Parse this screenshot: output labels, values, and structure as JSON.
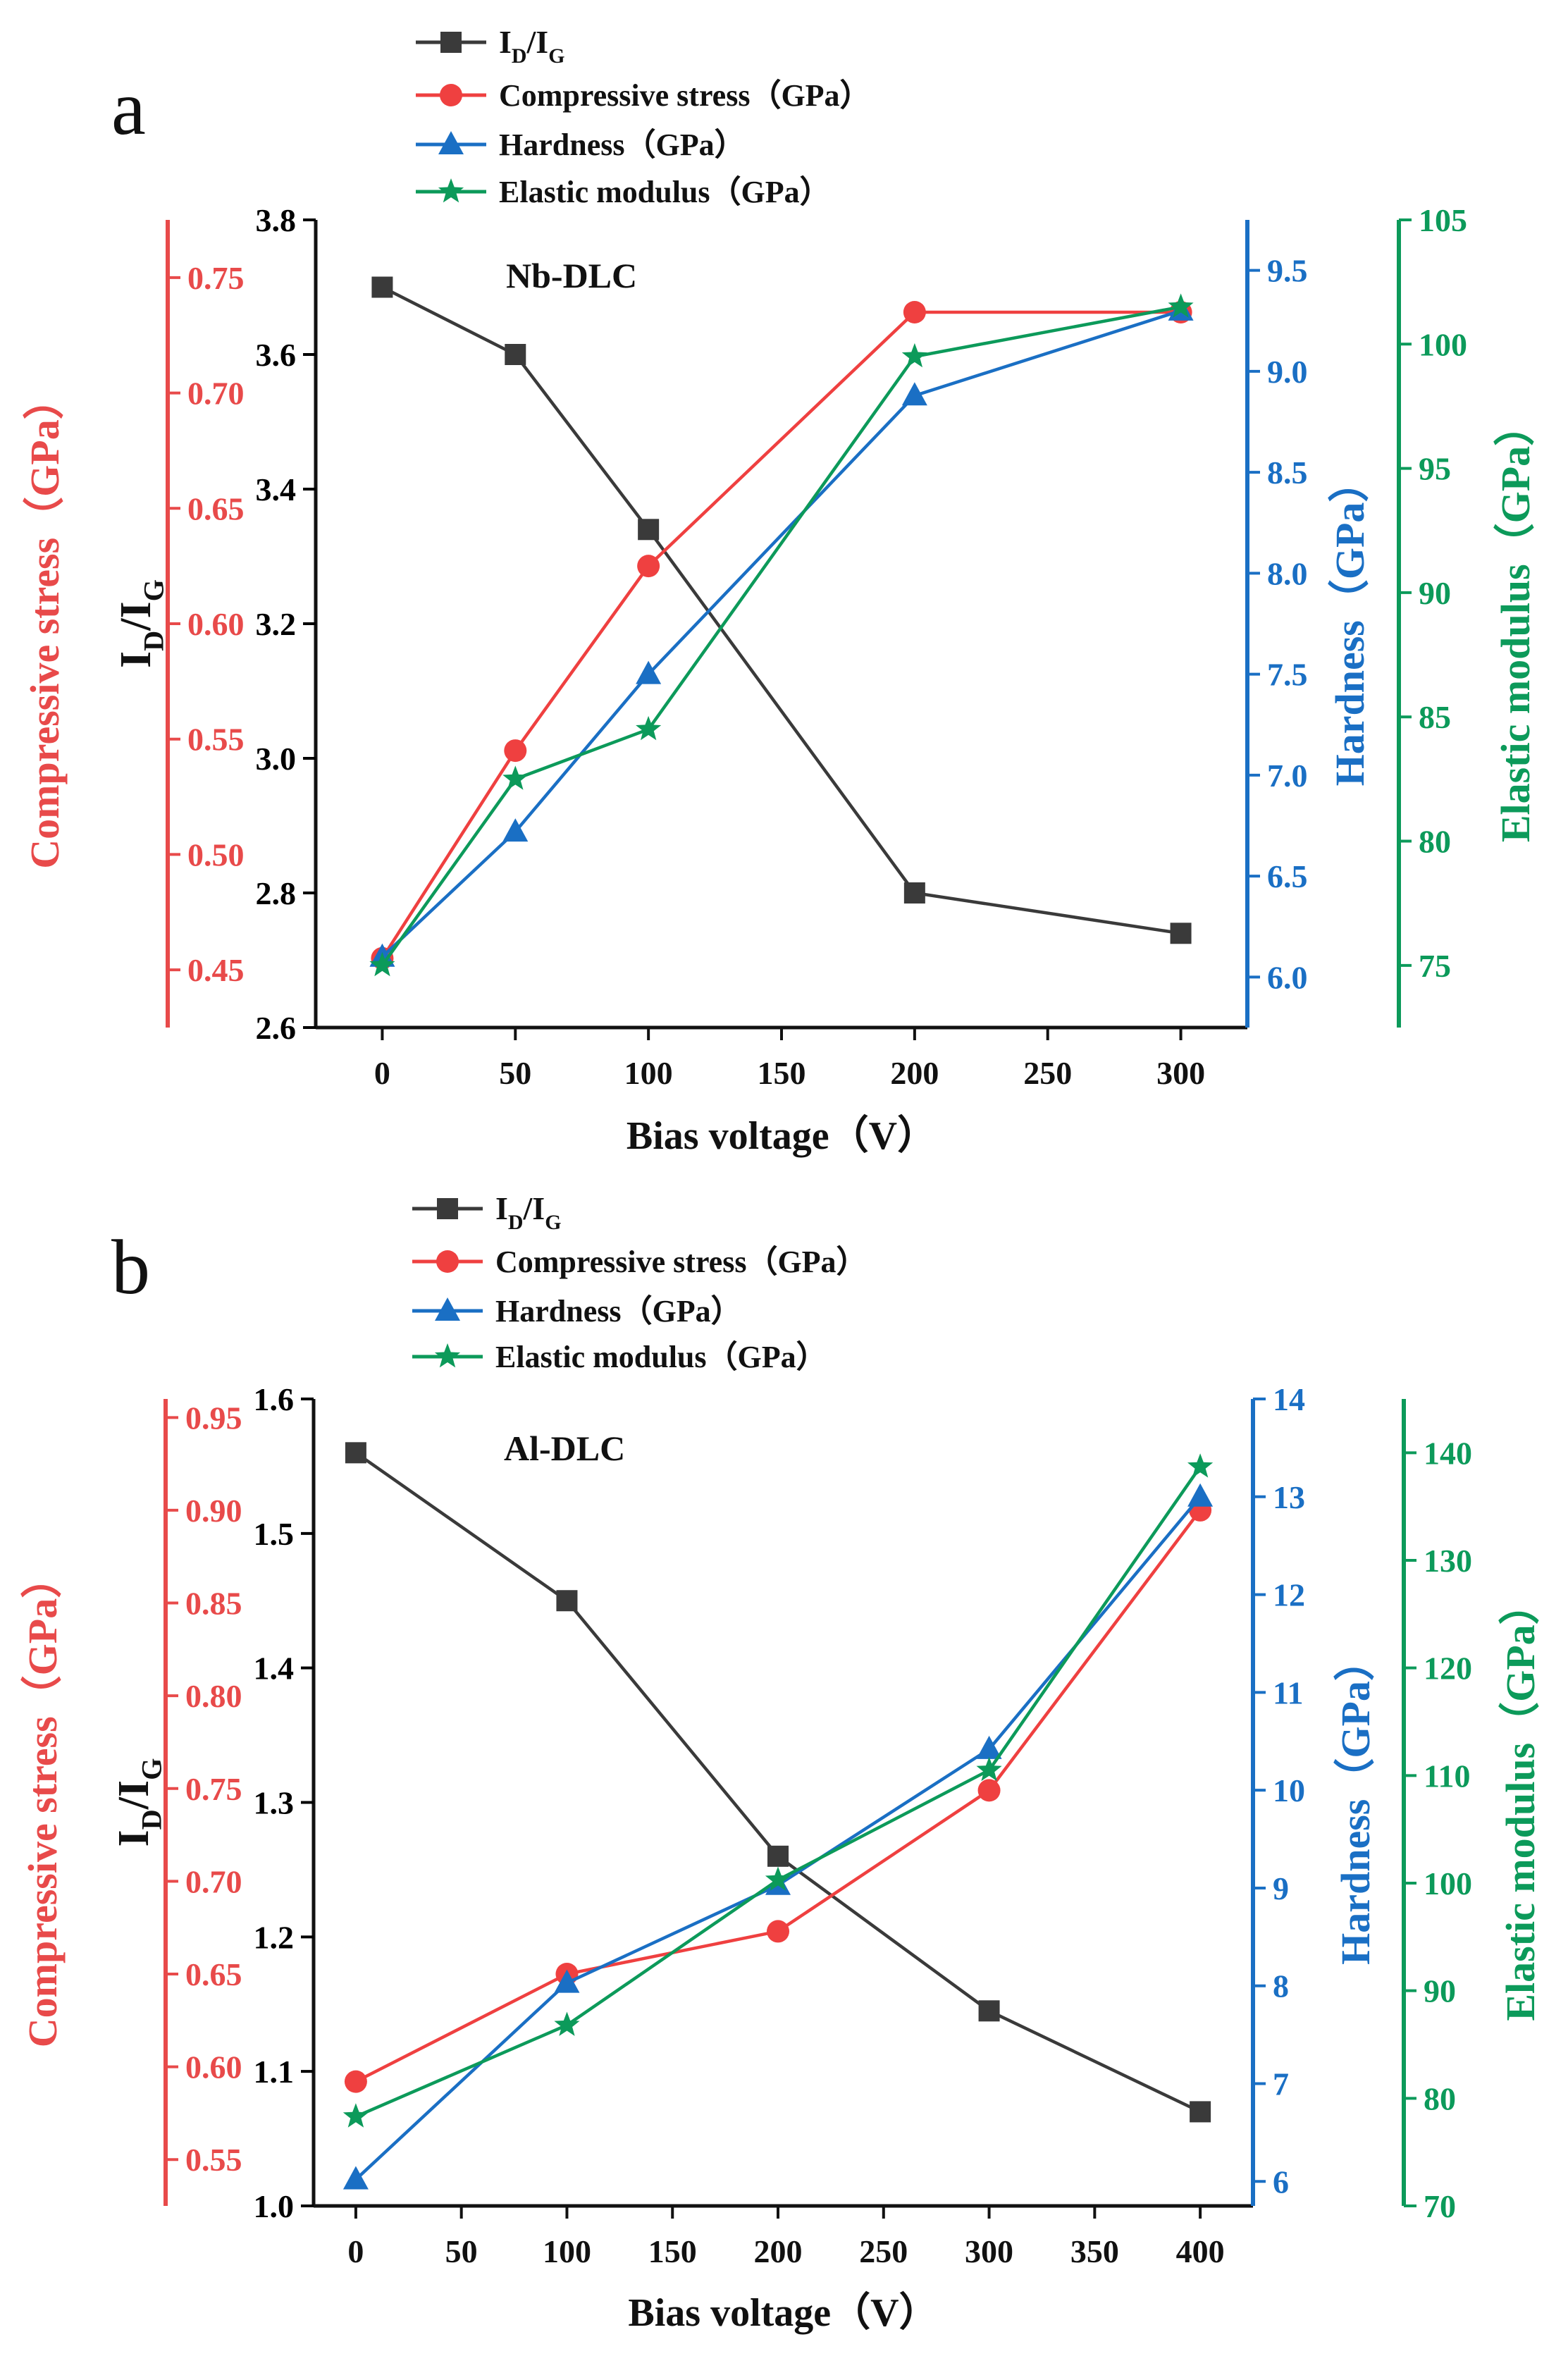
{
  "chart_data": [
    {
      "type": "line",
      "panel_label": "a",
      "annotation": "Nb-DLC",
      "xlabel": "Bias voltage（V）",
      "x": [
        0,
        50,
        100,
        200,
        300
      ],
      "xticks": [
        "0",
        "50",
        "100",
        "150",
        "200",
        "250",
        "300"
      ],
      "xtick_values": [
        0,
        50,
        100,
        150,
        200,
        250,
        300
      ],
      "xlim": [
        -25,
        325
      ],
      "axes": [
        {
          "id": "left_inner",
          "label_main": "I",
          "label_sub1": "D",
          "label_mid": "/I",
          "label_sub2": "G",
          "ylim": [
            2.6,
            3.8
          ],
          "ticks": [
            "2.6",
            "2.8",
            "3.0",
            "3.2",
            "3.4",
            "3.6",
            "3.8"
          ],
          "tick_values": [
            2.6,
            2.8,
            3.0,
            3.2,
            3.4,
            3.6,
            3.8
          ],
          "color": "#000000"
        },
        {
          "id": "left_outer",
          "label": "Compressive stress（GPa）",
          "ylim": [
            0.425,
            0.775
          ],
          "ticks": [
            "0.45",
            "0.50",
            "0.55",
            "0.60",
            "0.65",
            "0.70",
            "0.75"
          ],
          "tick_values": [
            0.45,
            0.5,
            0.55,
            0.6,
            0.65,
            0.7,
            0.75
          ],
          "color": "#e84a4a"
        },
        {
          "id": "right_inner",
          "label": "Hardness（GPa）",
          "ylim": [
            5.75,
            9.75
          ],
          "ticks": [
            "6.0",
            "6.5",
            "7.0",
            "7.5",
            "8.0",
            "8.5",
            "9.0",
            "9.5"
          ],
          "tick_values": [
            6.0,
            6.5,
            7.0,
            7.5,
            8.0,
            8.5,
            9.0,
            9.5
          ],
          "color": "#1a6fc4"
        },
        {
          "id": "right_outer",
          "label": "Elastic modulus（GPa）",
          "ylim": [
            72.5,
            105
          ],
          "ticks": [
            "75",
            "80",
            "85",
            "90",
            "95",
            "100",
            "105"
          ],
          "tick_values": [
            75,
            80,
            85,
            90,
            95,
            100,
            105
          ],
          "color": "#0c9a5a"
        }
      ],
      "series": [
        {
          "name": "I_D/I_G",
          "legend_main": "I",
          "legend_sub1": "D",
          "legend_mid": "/I",
          "legend_sub2": "G",
          "axis": "left_inner",
          "marker": "square",
          "color": "#3a3a3a",
          "values": [
            3.7,
            3.6,
            3.34,
            2.8,
            2.74
          ]
        },
        {
          "name": "Compressive stress（GPa）",
          "legend": "Compressive stress（GPa）",
          "axis": "left_outer",
          "marker": "circle",
          "color": "#ef4040",
          "values": [
            0.455,
            0.545,
            0.625,
            0.735,
            0.735
          ]
        },
        {
          "name": "Hardness（GPa）",
          "legend": "Hardness（GPa）",
          "axis": "right_inner",
          "marker": "triangle",
          "color": "#1a6fc4",
          "values": [
            6.1,
            6.72,
            7.5,
            8.88,
            9.3
          ]
        },
        {
          "name": "Elastic modulus（GPa）",
          "legend": "Elastic modulus（GPa）",
          "axis": "right_outer",
          "marker": "star",
          "color": "#0c9a5a",
          "values": [
            75,
            82.5,
            84.5,
            99.5,
            101.5
          ]
        }
      ]
    },
    {
      "type": "line",
      "panel_label": "b",
      "annotation": "Al-DLC",
      "xlabel": "Bias voltage（V）",
      "x": [
        0,
        100,
        200,
        300,
        400
      ],
      "xticks": [
        "0",
        "50",
        "100",
        "150",
        "200",
        "250",
        "300",
        "350",
        "400"
      ],
      "xtick_values": [
        0,
        50,
        100,
        150,
        200,
        250,
        300,
        350,
        400
      ],
      "xlim": [
        -20,
        425
      ],
      "axes": [
        {
          "id": "left_inner",
          "label_main": "I",
          "label_sub1": "D",
          "label_mid": "/I",
          "label_sub2": "G",
          "ylim": [
            1.0,
            1.6
          ],
          "ticks": [
            "1.0",
            "1.1",
            "1.2",
            "1.3",
            "1.4",
            "1.5",
            "1.6"
          ],
          "tick_values": [
            1.0,
            1.1,
            1.2,
            1.3,
            1.4,
            1.5,
            1.6
          ],
          "color": "#000000"
        },
        {
          "id": "left_outer",
          "label": "Compressive stress（GPa）",
          "ylim": [
            0.525,
            0.96
          ],
          "ticks": [
            "0.55",
            "0.60",
            "0.65",
            "0.70",
            "0.75",
            "0.80",
            "0.85",
            "0.90",
            "0.95"
          ],
          "tick_values": [
            0.55,
            0.6,
            0.65,
            0.7,
            0.75,
            0.8,
            0.85,
            0.9,
            0.95
          ],
          "color": "#e84a4a"
        },
        {
          "id": "right_inner",
          "label": "Hardness（GPa）",
          "ylim": [
            5.75,
            14.0
          ],
          "ticks": [
            "6",
            "7",
            "8",
            "9",
            "10",
            "11",
            "12",
            "13",
            "14"
          ],
          "tick_values": [
            6,
            7,
            8,
            9,
            10,
            11,
            12,
            13,
            14
          ],
          "color": "#1a6fc4"
        },
        {
          "id": "right_outer",
          "label": "Elastic modulus（GPa）",
          "ylim": [
            70,
            145
          ],
          "ticks": [
            "70",
            "80",
            "90",
            "100",
            "110",
            "120",
            "130",
            "140"
          ],
          "tick_values": [
            70,
            80,
            90,
            100,
            110,
            120,
            130,
            140
          ],
          "color": "#0c9a5a"
        }
      ],
      "series": [
        {
          "name": "I_D/I_G",
          "legend_main": "I",
          "legend_sub1": "D",
          "legend_mid": "/I",
          "legend_sub2": "G",
          "axis": "left_inner",
          "marker": "square",
          "color": "#3a3a3a",
          "values": [
            1.56,
            1.45,
            1.26,
            1.145,
            1.07
          ]
        },
        {
          "name": "Compressive stress（GPa）",
          "legend": "Compressive stress（GPa）",
          "axis": "left_outer",
          "marker": "circle",
          "color": "#ef4040",
          "values": [
            0.592,
            0.65,
            0.673,
            0.749,
            0.9
          ]
        },
        {
          "name": "Hardness（GPa）",
          "legend": "Hardness（GPa）",
          "axis": "right_inner",
          "marker": "triangle",
          "color": "#1a6fc4",
          "values": [
            6.02,
            8.03,
            9.03,
            10.42,
            13.0
          ]
        },
        {
          "name": "Elastic modulus（GPa）",
          "legend": "Elastic modulus（GPa）",
          "axis": "right_outer",
          "marker": "star",
          "color": "#0c9a5a",
          "values": [
            78.3,
            86.8,
            100.3,
            110.5,
            138.7
          ]
        }
      ]
    }
  ]
}
